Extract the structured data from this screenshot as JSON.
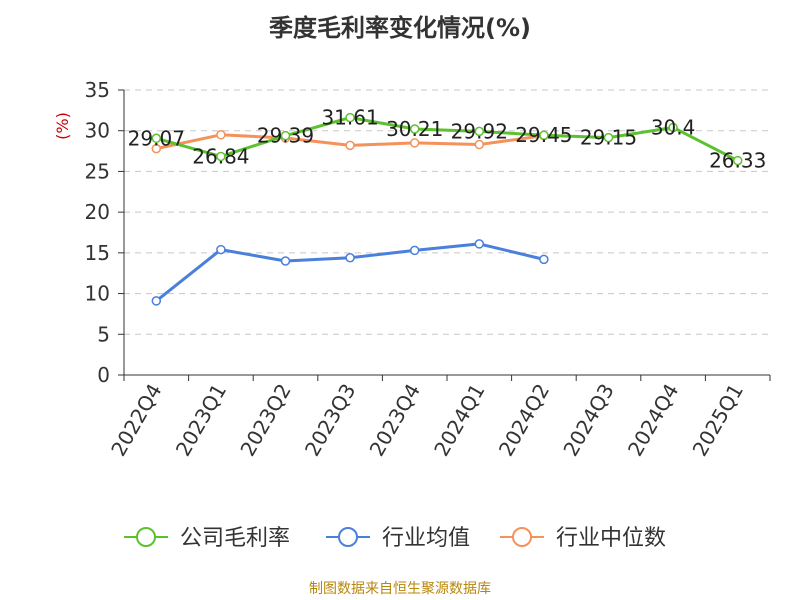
{
  "chart_data": {
    "type": "line",
    "title": "季度毛利率变化情况(%)",
    "ylabel": "(%)",
    "categories": [
      "2022Q4",
      "2023Q1",
      "2023Q2",
      "2023Q3",
      "2023Q4",
      "2024Q1",
      "2024Q2",
      "2024Q3",
      "2024Q4",
      "2025Q1"
    ],
    "ylim": [
      0,
      35
    ],
    "yticks": [
      0,
      5,
      10,
      15,
      20,
      25,
      30,
      35
    ],
    "grid": true,
    "legend_position": "bottom",
    "series": [
      {
        "name": "公司毛利率",
        "color": "#5cc12e",
        "values": [
          29.07,
          26.84,
          29.39,
          31.61,
          30.21,
          29.92,
          29.45,
          29.15,
          30.4,
          26.33
        ],
        "labels": [
          "29.07",
          "26.84",
          "29.39",
          "31.61",
          "30.21",
          "29.92",
          "29.45",
          "29.15",
          "30.4",
          "26.33"
        ]
      },
      {
        "name": "行业均值",
        "color": "#4a7fdc",
        "values": [
          9.1,
          15.4,
          14.0,
          14.4,
          15.3,
          16.1,
          14.2,
          null,
          null,
          null
        ]
      },
      {
        "name": "行业中位数",
        "color": "#f5915a",
        "values": [
          27.8,
          29.5,
          29.1,
          28.2,
          28.5,
          28.3,
          29.4,
          null,
          null,
          null
        ]
      }
    ]
  },
  "footer": {
    "source": "制图数据来自恒生聚源数据库"
  }
}
